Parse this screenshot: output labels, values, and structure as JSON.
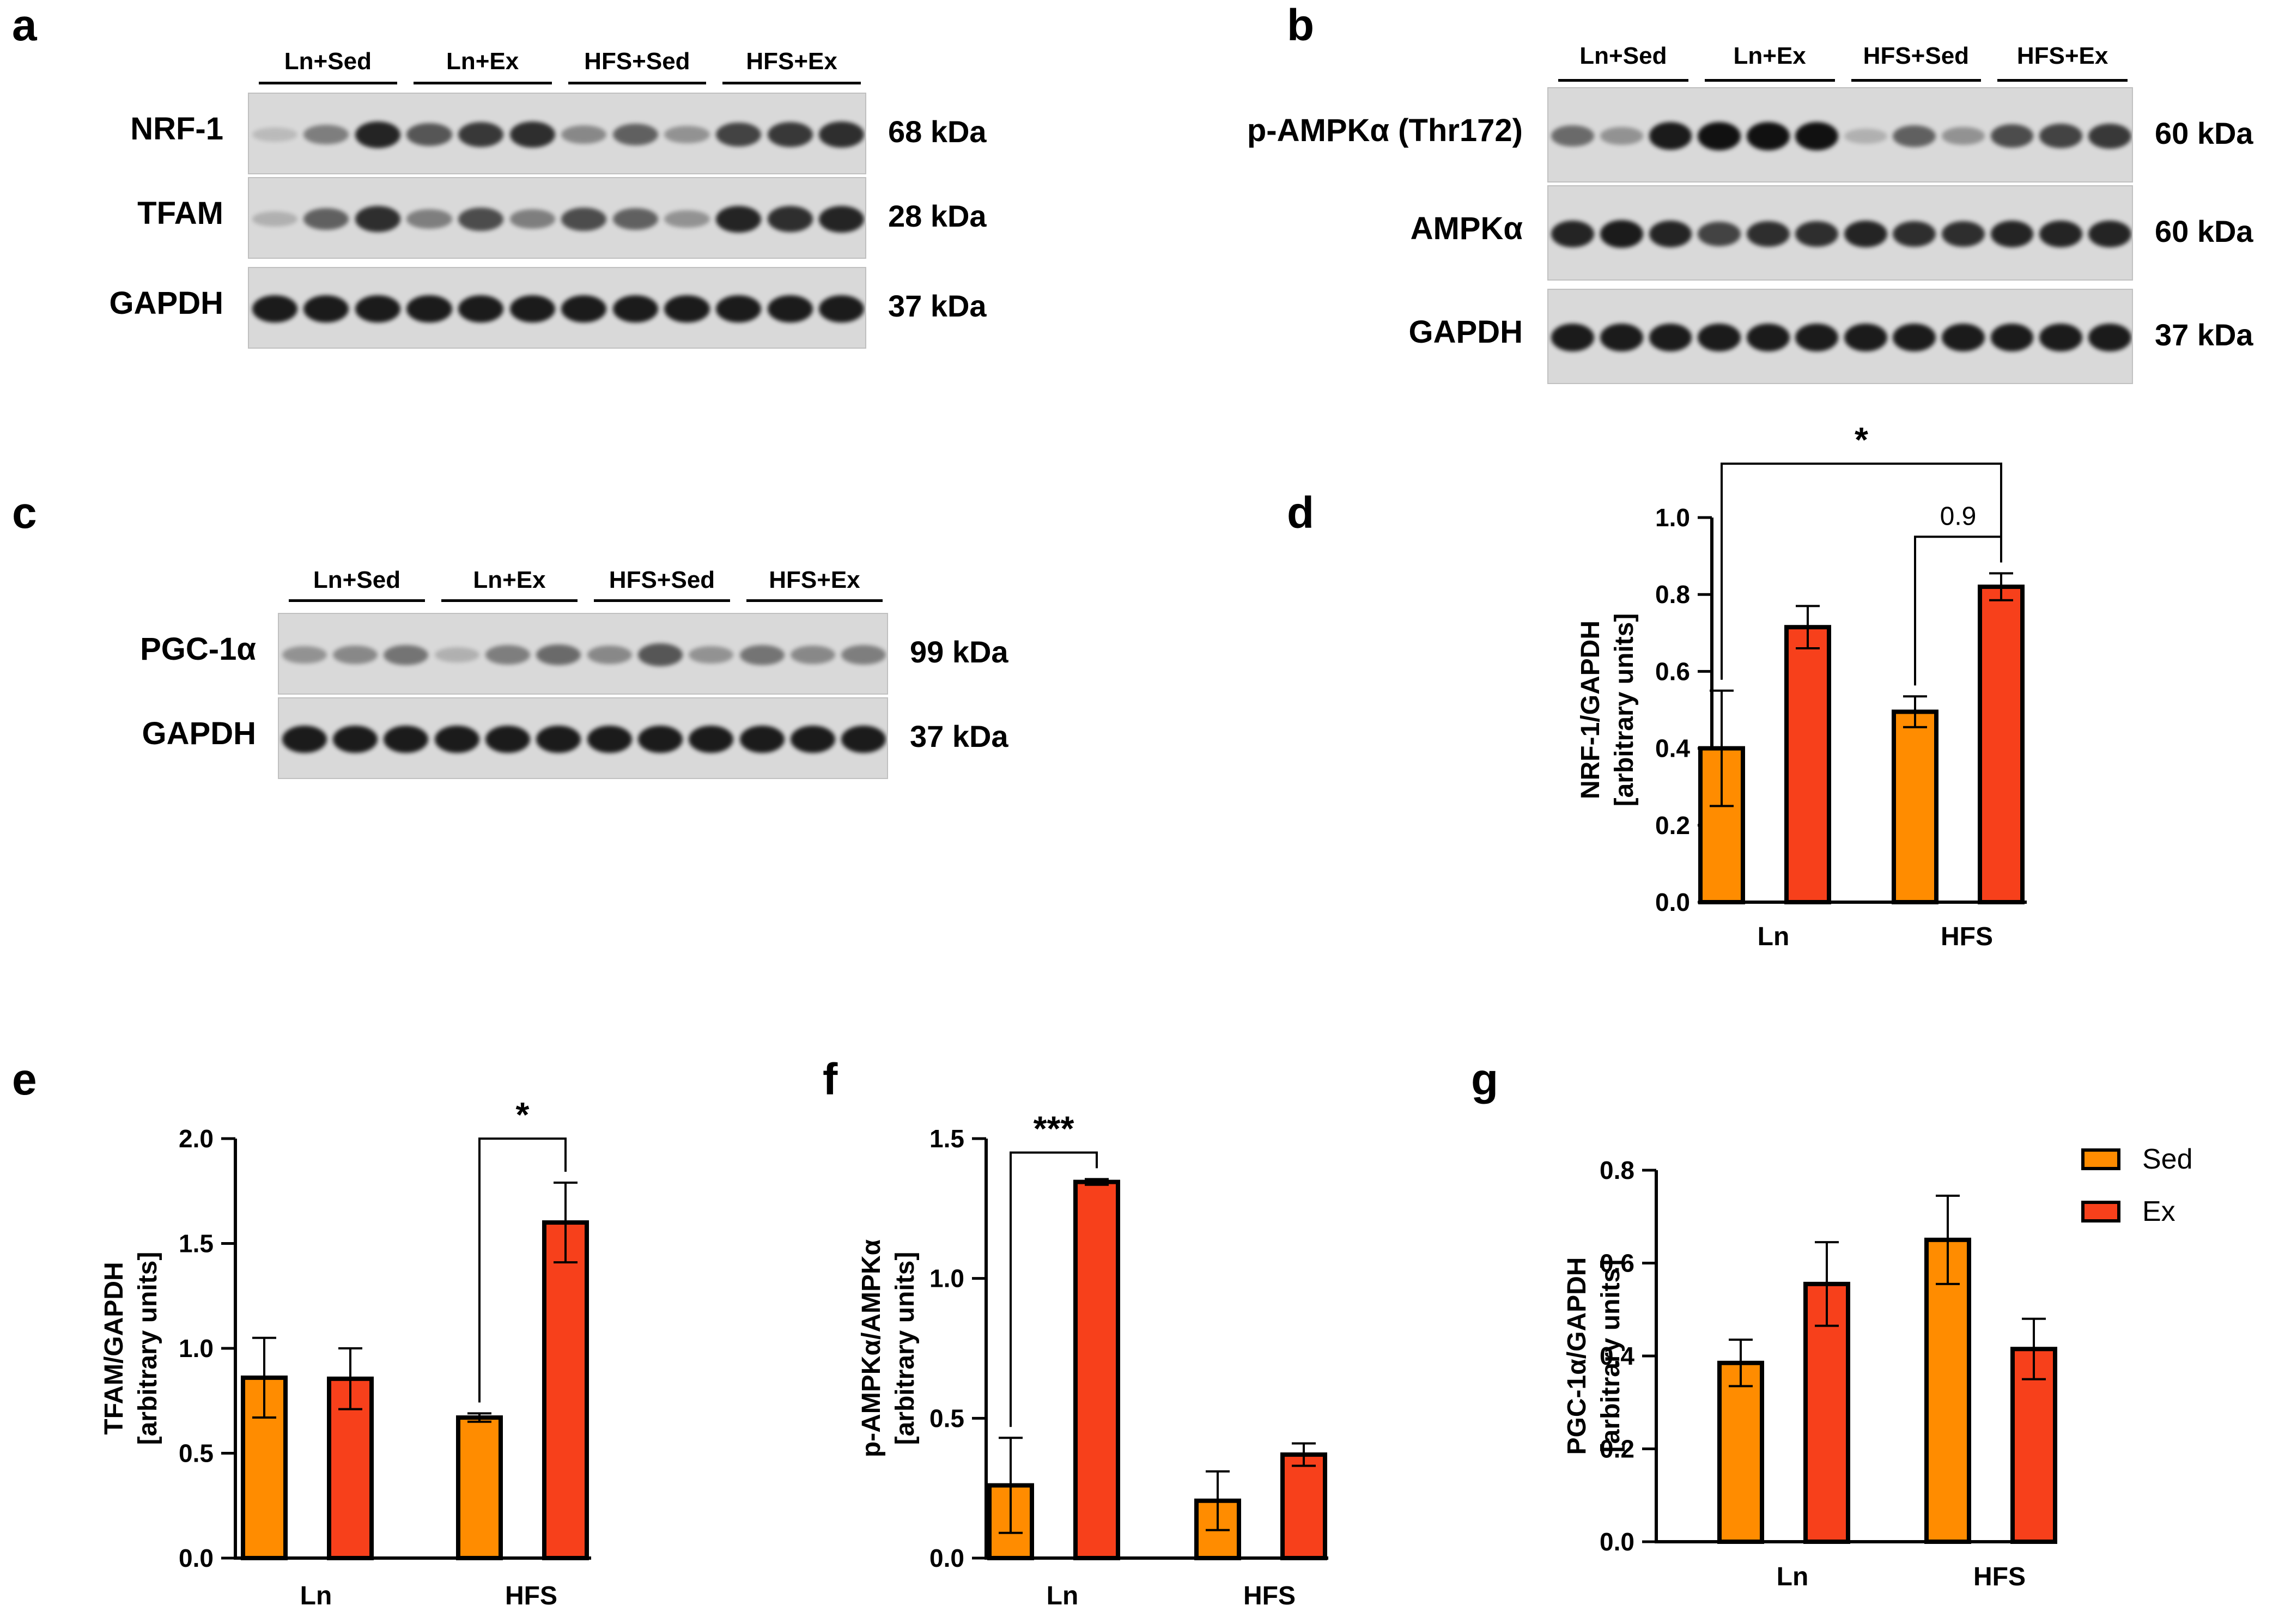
{
  "colors": {
    "sed": "#ff8c00",
    "ex": "#f7401b",
    "axis": "#000000",
    "blot_bg": "#d9d9d9",
    "band": "#111111"
  },
  "legend": [
    {
      "name": "Sed",
      "color": "#ff8c00"
    },
    {
      "name": "Ex",
      "color": "#f7401b"
    }
  ],
  "blots": {
    "a": {
      "letter": "a",
      "groups": [
        "Ln+Sed",
        "Ln+Ex",
        "HFS+Sed",
        "HFS+Ex"
      ],
      "rows": [
        {
          "protein": "NRF-1",
          "kda": "68 kDa",
          "intensity": [
            0.15,
            0.45,
            0.9,
            0.65,
            0.8,
            0.85,
            0.4,
            0.6,
            0.35,
            0.75,
            0.8,
            0.85
          ]
        },
        {
          "protein": "TFAM",
          "kda": "28 kDa",
          "intensity": [
            0.2,
            0.6,
            0.85,
            0.45,
            0.7,
            0.45,
            0.7,
            0.6,
            0.35,
            0.9,
            0.85,
            0.9
          ]
        },
        {
          "protein": "GAPDH",
          "kda": "37 kDa",
          "intensity": [
            0.95,
            0.95,
            0.95,
            0.95,
            0.95,
            0.95,
            0.95,
            0.95,
            0.95,
            0.95,
            0.95,
            0.95
          ]
        }
      ]
    },
    "b": {
      "letter": "b",
      "groups": [
        "Ln+Sed",
        "Ln+Ex",
        "HFS+Sed",
        "HFS+Ex"
      ],
      "rows": [
        {
          "protein": "p-AMPKα (Thr172)",
          "kda": "60 kDa",
          "intensity": [
            0.55,
            0.35,
            0.95,
            1.0,
            1.0,
            1.0,
            0.2,
            0.6,
            0.35,
            0.7,
            0.75,
            0.8
          ]
        },
        {
          "protein": "AMPKα",
          "kda": "60 kDa",
          "intensity": [
            0.9,
            0.95,
            0.9,
            0.75,
            0.85,
            0.85,
            0.9,
            0.85,
            0.85,
            0.9,
            0.9,
            0.9
          ]
        },
        {
          "protein": "GAPDH",
          "kda": "37 kDa",
          "intensity": [
            0.95,
            0.95,
            0.95,
            0.95,
            0.95,
            0.95,
            0.95,
            0.95,
            0.95,
            0.95,
            0.95,
            0.95
          ]
        }
      ]
    },
    "c": {
      "letter": "c",
      "groups": [
        "Ln+Sed",
        "Ln+Ex",
        "HFS+Sed",
        "HFS+Ex"
      ],
      "rows": [
        {
          "protein": "PGC-1α",
          "kda": "99 kDa",
          "intensity": [
            0.35,
            0.4,
            0.5,
            0.2,
            0.45,
            0.55,
            0.4,
            0.65,
            0.35,
            0.5,
            0.4,
            0.45
          ]
        },
        {
          "protein": "GAPDH",
          "kda": "37 kDa",
          "intensity": [
            0.95,
            0.95,
            0.95,
            0.95,
            0.95,
            0.95,
            0.95,
            0.95,
            0.95,
            0.95,
            0.95,
            0.95
          ]
        }
      ]
    }
  },
  "chart_data": [
    {
      "panel": "d",
      "type": "bar",
      "categories": [
        "Ln",
        "HFS"
      ],
      "series": [
        {
          "name": "Sed",
          "values": [
            0.4,
            0.495
          ],
          "errors": [
            0.15,
            0.04
          ]
        },
        {
          "name": "Ex",
          "values": [
            0.715,
            0.82
          ],
          "errors": [
            0.055,
            0.035
          ]
        }
      ],
      "ylabel": [
        "NRF-1/GAPDH",
        "[arbitrary units]"
      ],
      "ylim": [
        0,
        1.0
      ],
      "yticks": [
        0.0,
        0.2,
        0.4,
        0.6,
        0.8,
        1.0
      ],
      "ytick_labels": [
        "0.0",
        "0.2",
        "0.4",
        "0.6",
        "0.8",
        "1.0"
      ],
      "annotations": [
        {
          "label": "*",
          "from": "Ln-Sed",
          "to": "HFS-Ex",
          "level": 1.14
        },
        {
          "label": "0.9",
          "from": "HFS-Sed",
          "to": "HFS-Ex",
          "level": 0.95
        }
      ]
    },
    {
      "panel": "e",
      "type": "bar",
      "categories": [
        "Ln",
        "HFS"
      ],
      "series": [
        {
          "name": "Sed",
          "values": [
            0.86,
            0.67
          ],
          "errors": [
            0.19,
            0.02
          ]
        },
        {
          "name": "Ex",
          "values": [
            0.855,
            1.6
          ],
          "errors": [
            0.145,
            0.19
          ]
        }
      ],
      "ylabel": [
        "TFAM/GAPDH",
        "[arbitrary units]"
      ],
      "ylim": [
        0,
        2.0
      ],
      "yticks": [
        0.0,
        0.5,
        1.0,
        1.5,
        2.0
      ],
      "ytick_labels": [
        "0.0",
        "0.5",
        "1.0",
        "1.5",
        "2.0"
      ],
      "annotations": [
        {
          "label": "*",
          "from": "HFS-Sed",
          "to": "HFS-Ex",
          "level": 2.0
        }
      ]
    },
    {
      "panel": "f",
      "type": "bar",
      "categories": [
        "Ln",
        "HFS"
      ],
      "series": [
        {
          "name": "Sed",
          "values": [
            0.26,
            0.205
          ],
          "errors": [
            0.17,
            0.105
          ]
        },
        {
          "name": "Ex",
          "values": [
            1.345,
            0.37
          ],
          "errors": [
            0.01,
            0.04
          ]
        }
      ],
      "ylabel": [
        "p-AMPKα/AMPKα",
        "[arbitrary units]"
      ],
      "ylim": [
        0,
        1.5
      ],
      "yticks": [
        0.0,
        0.5,
        1.0,
        1.5
      ],
      "ytick_labels": [
        "0.0",
        "0.5",
        "1.0",
        "1.5"
      ],
      "annotations": [
        {
          "label": "***",
          "from": "Ln-Sed",
          "to": "Ln-Ex",
          "level": 1.45
        }
      ]
    },
    {
      "panel": "g",
      "type": "bar",
      "categories": [
        "Ln",
        "HFS"
      ],
      "series": [
        {
          "name": "Sed",
          "values": [
            0.385,
            0.65
          ],
          "errors": [
            0.05,
            0.095
          ]
        },
        {
          "name": "Ex",
          "values": [
            0.555,
            0.415
          ],
          "errors": [
            0.09,
            0.065
          ]
        }
      ],
      "ylabel": [
        "PGC-1α/GAPDH",
        "[arbitrary units]"
      ],
      "ylim": [
        0,
        0.8
      ],
      "yticks": [
        0.0,
        0.2,
        0.4,
        0.6,
        0.8
      ],
      "ytick_labels": [
        "0.0",
        "0.2",
        "0.4",
        "0.6",
        "0.8"
      ],
      "annotations": []
    }
  ]
}
